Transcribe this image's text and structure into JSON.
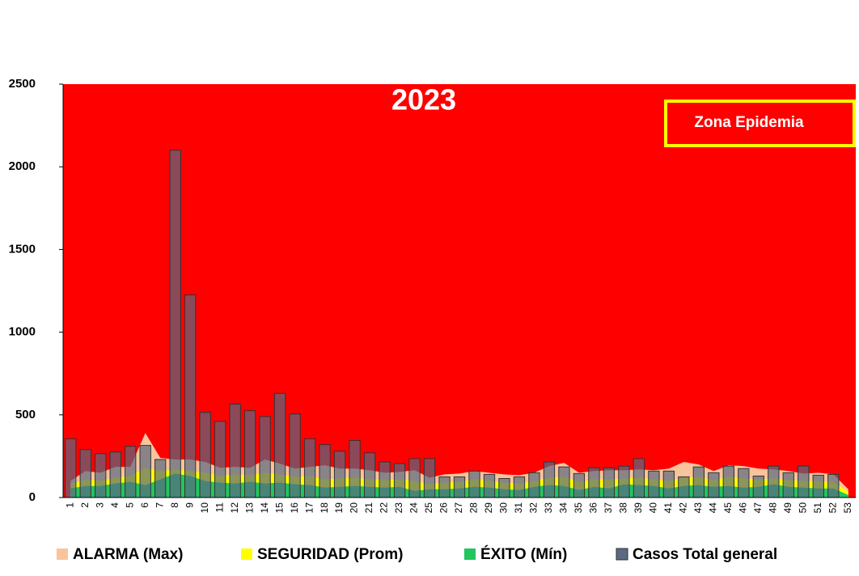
{
  "chart_data": {
    "type": "endemic",
    "title": "2023",
    "annotation": "Zona Epidemia",
    "background_color": "#ff0000",
    "categories": [
      "1",
      "2",
      "3",
      "4",
      "5",
      "6",
      "7",
      "8",
      "9",
      "10",
      "11",
      "12",
      "13",
      "14",
      "15",
      "16",
      "17",
      "18",
      "19",
      "20",
      "21",
      "22",
      "23",
      "24",
      "25",
      "26",
      "27",
      "28",
      "29",
      "30",
      "31",
      "32",
      "33",
      "34",
      "35",
      "36",
      "37",
      "38",
      "39",
      "40",
      "41",
      "42",
      "43",
      "44",
      "45",
      "46",
      "47",
      "48",
      "49",
      "50",
      "51",
      "52",
      "53"
    ],
    "ylim": [
      0,
      2500
    ],
    "yticks": [
      0,
      500,
      1000,
      1500,
      2000,
      2500
    ],
    "areas": [
      {
        "name": "ALARMA (Max)",
        "color": "#f8c49c",
        "values": [
          100,
          160,
          150,
          185,
          185,
          390,
          240,
          230,
          230,
          215,
          180,
          185,
          180,
          230,
          205,
          175,
          185,
          195,
          175,
          175,
          165,
          150,
          155,
          165,
          120,
          140,
          145,
          160,
          150,
          140,
          135,
          150,
          190,
          210,
          150,
          160,
          165,
          165,
          170,
          165,
          175,
          215,
          200,
          160,
          195,
          190,
          175,
          170,
          160,
          145,
          150,
          140,
          50
        ]
      },
      {
        "name": "SEGURIDAD (Prom)",
        "color": "#ffff00",
        "values": [
          80,
          110,
          100,
          120,
          130,
          180,
          160,
          170,
          160,
          150,
          130,
          140,
          135,
          150,
          140,
          125,
          130,
          110,
          115,
          120,
          110,
          105,
          110,
          100,
          80,
          90,
          95,
          110,
          100,
          90,
          85,
          100,
          120,
          125,
          95,
          110,
          110,
          115,
          120,
          110,
          100,
          120,
          125,
          105,
          125,
          115,
          110,
          115,
          105,
          100,
          100,
          95,
          35
        ]
      },
      {
        "name": "ÉXITO (Mín)",
        "color": "#22c55e",
        "values": [
          55,
          70,
          70,
          85,
          95,
          75,
          110,
          145,
          130,
          100,
          90,
          85,
          95,
          85,
          90,
          80,
          75,
          60,
          65,
          70,
          65,
          60,
          65,
          40,
          50,
          50,
          55,
          65,
          60,
          50,
          45,
          65,
          75,
          70,
          45,
          65,
          55,
          80,
          75,
          70,
          55,
          70,
          75,
          65,
          70,
          60,
          65,
          80,
          65,
          60,
          55,
          55,
          15
        ]
      }
    ],
    "series": [
      {
        "name": "Casos Total general",
        "color": "#5a6a80",
        "values": [
          355,
          290,
          265,
          275,
          310,
          315,
          230,
          2100,
          1225,
          515,
          460,
          565,
          525,
          490,
          630,
          505,
          355,
          320,
          280,
          345,
          270,
          215,
          205,
          235,
          235,
          125,
          125,
          160,
          140,
          115,
          125,
          150,
          215,
          185,
          145,
          180,
          180,
          190,
          235,
          160,
          160,
          125,
          185,
          150,
          190,
          175,
          130,
          190,
          150,
          190,
          135,
          140,
          null
        ]
      }
    ]
  }
}
